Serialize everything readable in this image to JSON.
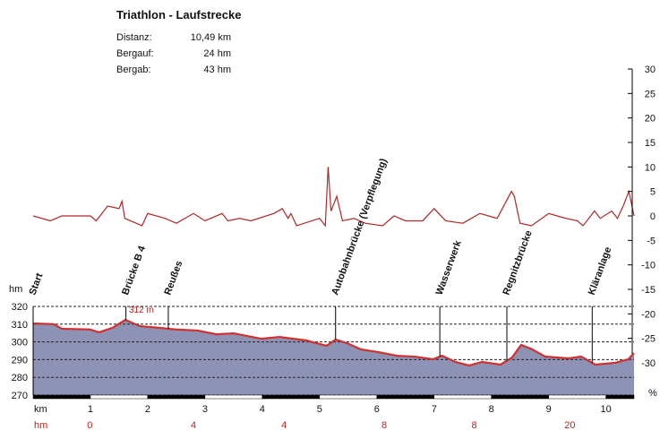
{
  "title": "Triathlon - Laufstrecke",
  "stats": [
    {
      "label": "Distanz:",
      "value": "10,49 km"
    },
    {
      "label": "Bergauf:",
      "value": "24 hm"
    },
    {
      "label": "Bergab:",
      "value": "43 hm"
    }
  ],
  "chart_data": [
    {
      "type": "line",
      "color": "#b02828",
      "axis": "y2",
      "x": [
        0,
        0.3,
        0.5,
        1,
        1.1,
        1.3,
        1.5,
        1.55,
        1.6,
        1.9,
        2.0,
        2.3,
        2.5,
        2.8,
        3.0,
        3.3,
        3.4,
        3.6,
        3.8,
        4.2,
        4.35,
        4.45,
        4.5,
        4.6,
        5.0,
        5.1,
        5.15,
        5.2,
        5.3,
        5.4,
        5.6,
        5.8,
        6.1,
        6.3,
        6.5,
        6.8,
        7.0,
        7.2,
        7.5,
        7.8,
        8.1,
        8.35,
        8.4,
        8.5,
        8.7,
        9.0,
        9.3,
        9.5,
        9.6,
        9.8,
        9.9,
        10.1,
        10.2,
        10.3,
        10.4,
        10.49
      ],
      "values": [
        0,
        -1,
        0,
        0,
        -1,
        2,
        1.5,
        3,
        -0.5,
        -2,
        0.5,
        -0.5,
        -1.5,
        0.5,
        -1,
        0.5,
        -1,
        -0.5,
        -1,
        0.5,
        1.5,
        -0.5,
        0.5,
        -2,
        -0.5,
        -2,
        10,
        1,
        4,
        -1,
        -0.5,
        -1.5,
        -2,
        0,
        -1,
        -1,
        1.5,
        -1,
        -1.5,
        0.5,
        -0.5,
        5,
        4,
        -1.5,
        -2,
        0.5,
        -0.5,
        -1,
        -2,
        1,
        -0.5,
        1,
        -0.5,
        2,
        5,
        0
      ],
      "y2lim": [
        -30,
        30
      ],
      "y2ticks": [
        30,
        25,
        20,
        15,
        10,
        5,
        0,
        -5,
        -10,
        -15,
        -20,
        -25,
        -30
      ],
      "y2label": "%"
    },
    {
      "type": "area",
      "color": "#d03030",
      "fill": "#8e92b4",
      "x": [
        0,
        0.36,
        0.5,
        0.99,
        1.15,
        1.39,
        1.61,
        1.86,
        2.17,
        2.49,
        2.87,
        3.2,
        3.5,
        3.98,
        4.3,
        4.77,
        5.12,
        5.28,
        5.48,
        5.72,
        6.03,
        6.35,
        6.66,
        6.98,
        7.14,
        7.37,
        7.61,
        7.84,
        8.16,
        8.36,
        8.52,
        8.71,
        8.94,
        9.34,
        9.57,
        9.81,
        10.16,
        10.39,
        10.49
      ],
      "values": [
        310.4,
        310,
        307.4,
        307,
        305.4,
        308,
        312.4,
        308.9,
        308,
        307,
        306.4,
        304.3,
        304.8,
        301.8,
        302.8,
        300.8,
        297.8,
        301.3,
        299.3,
        295.8,
        294.2,
        292.2,
        291.7,
        290.2,
        292.2,
        288.7,
        286.7,
        288.7,
        287.2,
        291.2,
        298.3,
        295.8,
        291.7,
        290.7,
        291.7,
        287.2,
        288.2,
        290.2,
        293.7
      ],
      "xlim": [
        0,
        10.49
      ],
      "ylim": [
        270,
        320
      ],
      "xticks": [
        1,
        2,
        3,
        4,
        5,
        6,
        7,
        8,
        9,
        10
      ],
      "yticks": [
        320,
        310,
        300,
        290,
        280,
        270
      ],
      "xlabel": "km",
      "ylabel": "hm",
      "grid": true,
      "peak_label": "312 m",
      "landmarks": [
        {
          "km": 0,
          "label": "Start"
        },
        {
          "km": 1.62,
          "label": "Brücke B 4"
        },
        {
          "km": 2.36,
          "label": "Reußes"
        },
        {
          "km": 5.28,
          "label": "Autobahnbrücke (Verpflegung)"
        },
        {
          "km": 7.1,
          "label": "Wasserwerk"
        },
        {
          "km": 8.27,
          "label": "Regnitzbrücke"
        },
        {
          "km": 9.76,
          "label": "Kläranlage"
        }
      ],
      "hm_row": {
        "label": "hm",
        "x": [
          0.99,
          2.8,
          4.38,
          6.13,
          7.7,
          9.37
        ],
        "values": [
          0,
          4,
          4,
          8,
          8,
          20
        ]
      }
    }
  ]
}
